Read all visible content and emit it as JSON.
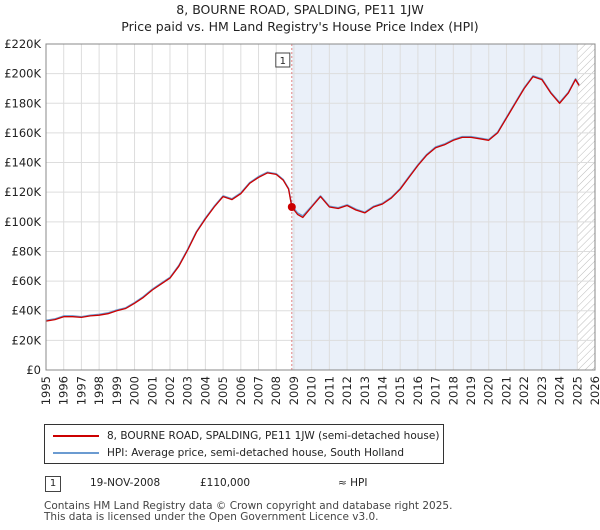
{
  "header": {
    "title": "8, BOURNE ROAD, SPALDING, PE11 1JW",
    "subtitle": "Price paid vs. HM Land Registry's House Price Index (HPI)"
  },
  "colors": {
    "price_line": "#cc0000",
    "hpi_line": "#6b9bd1",
    "shade": "#dce6f5"
  },
  "chart_data": {
    "type": "line",
    "title": "8, BOURNE ROAD, SPALDING, PE11 1JW",
    "xlim": [
      1995,
      2026
    ],
    "ylim": [
      0,
      220000
    ],
    "y_ticks": [
      0,
      20000,
      40000,
      60000,
      80000,
      100000,
      120000,
      140000,
      160000,
      180000,
      200000,
      220000
    ],
    "y_tick_labels": [
      "£0",
      "£20K",
      "£40K",
      "£60K",
      "£80K",
      "£100K",
      "£120K",
      "£140K",
      "£160K",
      "£180K",
      "£200K",
      "£220K"
    ],
    "x_ticks": [
      1995,
      1996,
      1997,
      1998,
      1999,
      2000,
      2001,
      2002,
      2003,
      2004,
      2005,
      2006,
      2007,
      2008,
      2009,
      2010,
      2011,
      2012,
      2013,
      2014,
      2015,
      2016,
      2017,
      2018,
      2019,
      2020,
      2021,
      2022,
      2023,
      2024,
      2025,
      2026
    ],
    "x_tick_labels": [
      "1995",
      "1996",
      "1997",
      "1998",
      "1999",
      "2000",
      "2001",
      "2002",
      "2003",
      "2004",
      "2005",
      "2006",
      "2007",
      "2008",
      "2009",
      "2010",
      "2011",
      "2012",
      "2013",
      "2014",
      "2015",
      "2016",
      "2017",
      "2018",
      "2019",
      "2020",
      "2021",
      "2022",
      "2023",
      "2024",
      "2025",
      "2026"
    ],
    "sale_marker": {
      "label": "1",
      "x": 2008.88,
      "y": 110000
    },
    "shaded_from": 2008.88,
    "forecast_from": 2025.0,
    "series": [
      {
        "name": "8, BOURNE ROAD, SPALDING, PE11 1JW (semi-detached house)",
        "color": "#cc0000",
        "x": [
          1995.0,
          1995.5,
          1996.0,
          1996.5,
          1997.0,
          1997.5,
          1998.0,
          1998.5,
          1999.0,
          1999.5,
          2000.0,
          2000.5,
          2001.0,
          2001.5,
          2002.0,
          2002.5,
          2003.0,
          2003.5,
          2004.0,
          2004.5,
          2005.0,
          2005.5,
          2006.0,
          2006.5,
          2007.0,
          2007.5,
          2008.0,
          2008.4,
          2008.7,
          2008.88,
          2009.2,
          2009.5,
          2010.0,
          2010.5,
          2011.0,
          2011.5,
          2012.0,
          2012.5,
          2013.0,
          2013.5,
          2014.0,
          2014.5,
          2015.0,
          2015.5,
          2016.0,
          2016.5,
          2017.0,
          2017.5,
          2018.0,
          2018.5,
          2019.0,
          2019.5,
          2020.0,
          2020.5,
          2021.0,
          2021.5,
          2022.0,
          2022.5,
          2023.0,
          2023.5,
          2024.0,
          2024.5,
          2024.9,
          2025.1
        ],
        "y": [
          33000,
          34000,
          36000,
          36000,
          35500,
          36500,
          37000,
          38000,
          40000,
          41500,
          45000,
          49000,
          54000,
          58000,
          62000,
          70000,
          81000,
          93000,
          102000,
          110000,
          117000,
          115000,
          119000,
          126000,
          130000,
          133000,
          132000,
          128000,
          122000,
          110000,
          105000,
          103000,
          110000,
          117000,
          110000,
          109000,
          111000,
          108000,
          106000,
          110000,
          112000,
          116000,
          122000,
          130000,
          138000,
          145000,
          150000,
          152000,
          155000,
          157000,
          157000,
          156000,
          155000,
          160000,
          170000,
          180000,
          190000,
          198000,
          196000,
          187000,
          180000,
          187000,
          196000,
          192000
        ]
      },
      {
        "name": "HPI: Average price, semi-detached house, South Holland",
        "color": "#6b9bd1",
        "x": [
          1995.0,
          1995.5,
          1996.0,
          1996.5,
          1997.0,
          1997.5,
          1998.0,
          1998.5,
          1999.0,
          1999.5,
          2000.0,
          2000.5,
          2001.0,
          2001.5,
          2002.0,
          2002.5,
          2003.0,
          2003.5,
          2004.0,
          2004.5,
          2005.0,
          2005.5,
          2006.0,
          2006.5,
          2007.0,
          2007.5,
          2008.0,
          2008.4,
          2008.7,
          2008.88,
          2009.2,
          2009.5,
          2010.0,
          2010.5,
          2011.0,
          2011.5,
          2012.0,
          2012.5,
          2013.0,
          2013.5,
          2014.0,
          2014.5,
          2015.0,
          2015.5,
          2016.0,
          2016.5,
          2017.0,
          2017.5,
          2018.0,
          2018.5,
          2019.0,
          2019.5,
          2020.0,
          2020.5,
          2021.0,
          2021.5,
          2022.0,
          2022.5,
          2023.0,
          2023.5,
          2024.0,
          2024.5,
          2024.9,
          2025.1
        ],
        "y": [
          33500,
          34500,
          36500,
          36500,
          36000,
          37000,
          37500,
          38500,
          40500,
          42000,
          45500,
          49500,
          54500,
          58500,
          62500,
          70500,
          81500,
          93500,
          102500,
          110500,
          117500,
          115500,
          119500,
          126500,
          130500,
          133500,
          132500,
          128500,
          122500,
          111000,
          106000,
          104000,
          110500,
          117500,
          110500,
          109500,
          111500,
          108500,
          106500,
          110500,
          112500,
          116500,
          122500,
          130500,
          138500,
          145500,
          150500,
          152500,
          155500,
          157500,
          157500,
          156500,
          155500,
          160500,
          170500,
          180500,
          190500,
          198500,
          196500,
          187500,
          180500,
          187500,
          196500,
          192500
        ]
      }
    ]
  },
  "legend": {
    "price_label": "8, BOURNE ROAD, SPALDING, PE11 1JW (semi-detached house)",
    "hpi_label": "HPI: Average price, semi-detached house, South Holland"
  },
  "sales": [
    {
      "marker": "1",
      "date": "19-NOV-2008",
      "price": "£110,000",
      "hpi_relation": "≈ HPI"
    }
  ],
  "footer": {
    "line1": "Contains HM Land Registry data © Crown copyright and database right 2025.",
    "line2": "This data is licensed under the Open Government Licence v3.0."
  }
}
